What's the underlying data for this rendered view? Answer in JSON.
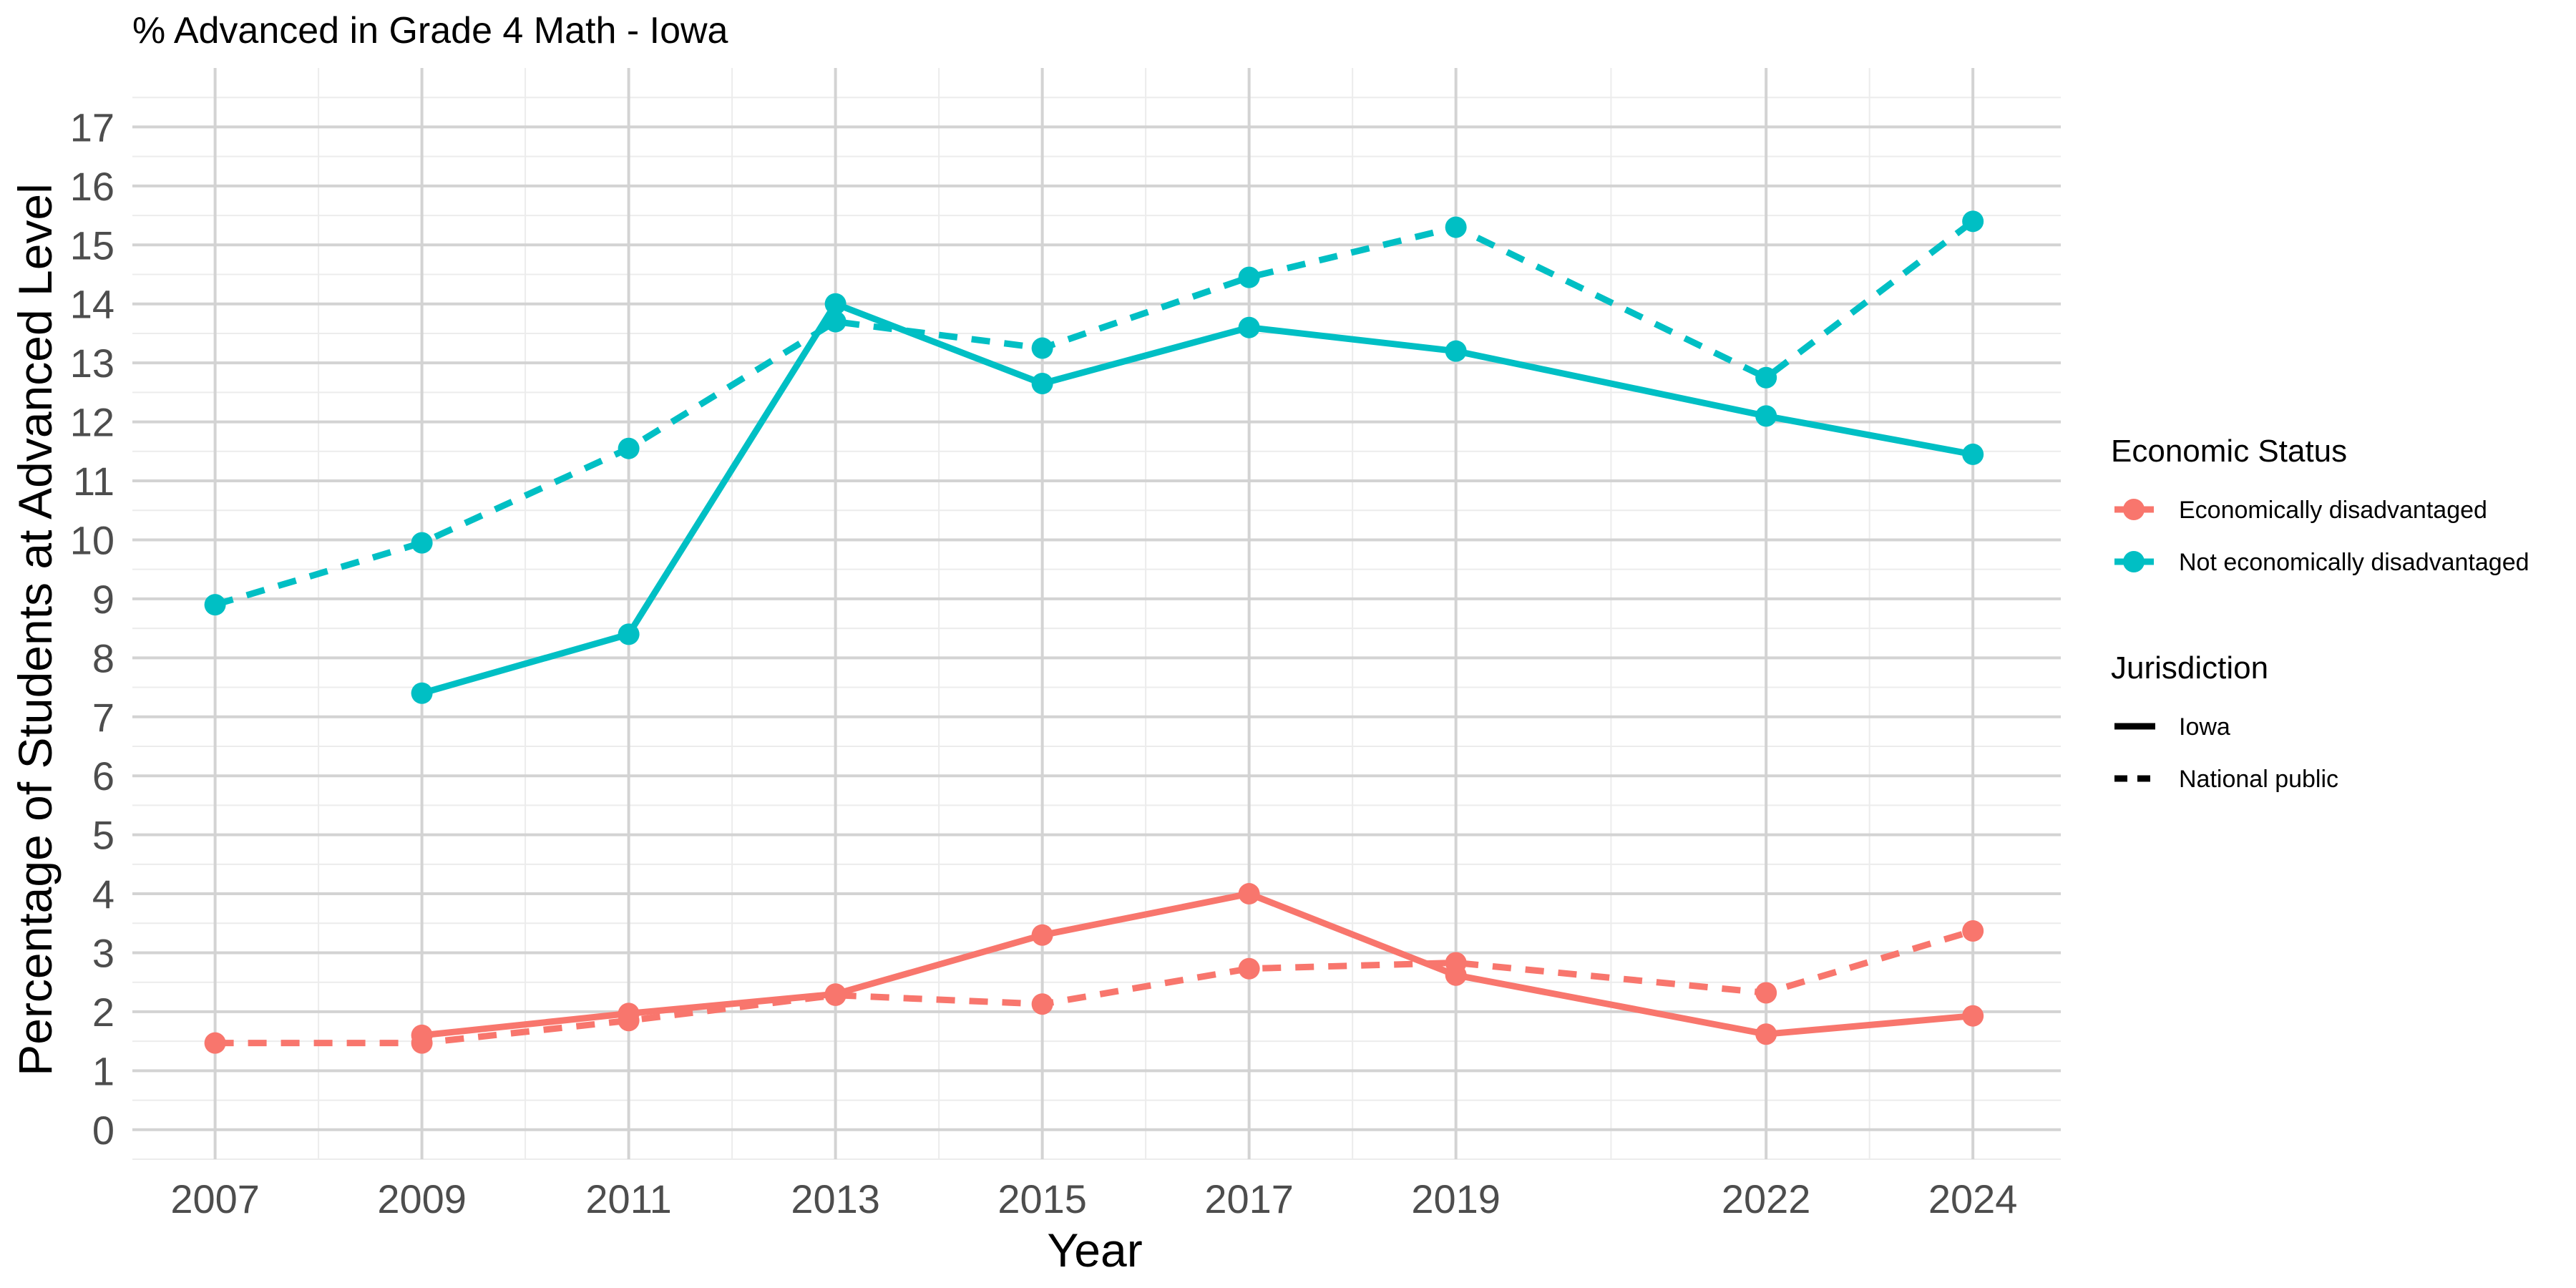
{
  "chart_data": {
    "type": "line",
    "title": "% Advanced in Grade 4 Math - Iowa",
    "xlabel": "Year",
    "ylabel": "Percentage of Students at Advanced Level",
    "x_ticks": [
      2007,
      2009,
      2011,
      2013,
      2015,
      2017,
      2019,
      2022,
      2024
    ],
    "y_ticks": [
      0,
      1,
      2,
      3,
      4,
      5,
      6,
      7,
      8,
      9,
      10,
      11,
      12,
      13,
      14,
      15,
      16,
      17
    ],
    "xlim": [
      2006.2,
      2024.85
    ],
    "ylim": [
      -0.5,
      18.0
    ],
    "grid": true,
    "legend_position": "right",
    "legend": {
      "color_title": "Economic Status",
      "color_entries": [
        {
          "label": "Economically disadvantaged",
          "color": "#F8766D"
        },
        {
          "label": "Not economically disadvantaged",
          "color": "#00BFC4"
        }
      ],
      "linetype_title": "Jurisdiction",
      "linetype_entries": [
        {
          "label": "Iowa",
          "dash": "solid"
        },
        {
          "label": "National public",
          "dash": "dashed"
        }
      ]
    },
    "series": [
      {
        "status": "Not economically disadvantaged",
        "jurisdiction": "Iowa",
        "color": "#00BFC4",
        "dash": "solid",
        "x": [
          2009,
          2011,
          2013,
          2015,
          2017,
          2019,
          2022,
          2024
        ],
        "y": [
          7.4,
          8.4,
          14.0,
          12.65,
          13.6,
          13.2,
          12.1,
          11.45
        ]
      },
      {
        "status": "Not economically disadvantaged",
        "jurisdiction": "National public",
        "color": "#00BFC4",
        "dash": "dashed",
        "x": [
          2007,
          2009,
          2011,
          2013,
          2015,
          2017,
          2019,
          2022,
          2024
        ],
        "y": [
          8.9,
          9.95,
          11.55,
          13.7,
          13.25,
          14.45,
          15.3,
          12.75,
          15.4
        ]
      },
      {
        "status": "Economically disadvantaged",
        "jurisdiction": "Iowa",
        "color": "#F8766D",
        "dash": "solid",
        "x": [
          2009,
          2011,
          2013,
          2015,
          2017,
          2019,
          2022,
          2024
        ],
        "y": [
          1.6,
          1.97,
          2.3,
          3.3,
          4.0,
          2.62,
          1.62,
          1.93
        ]
      },
      {
        "status": "Economically disadvantaged",
        "jurisdiction": "National public",
        "color": "#F8766D",
        "dash": "dashed",
        "x": [
          2007,
          2009,
          2011,
          2013,
          2015,
          2017,
          2019,
          2022,
          2024
        ],
        "y": [
          1.47,
          1.47,
          1.85,
          2.28,
          2.13,
          2.73,
          2.83,
          2.32,
          3.37
        ]
      }
    ]
  }
}
